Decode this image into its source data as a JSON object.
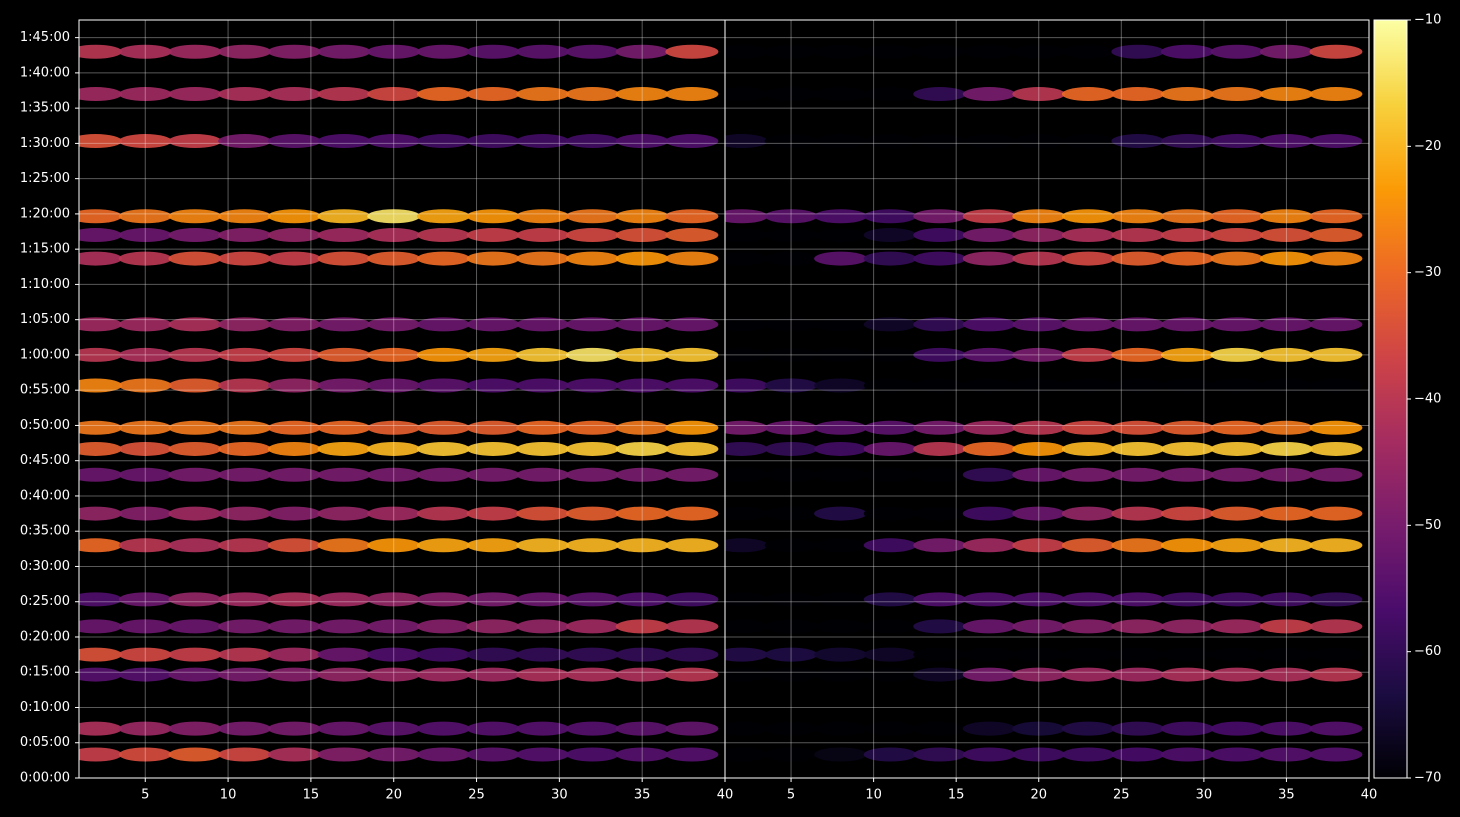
{
  "chart_data": {
    "type": "heatmap",
    "colormap": "inferno",
    "grid": true,
    "x": [
      2,
      5,
      8,
      11,
      14,
      17,
      20,
      23,
      26,
      29,
      32,
      35,
      38
    ],
    "y": [
      200,
      420,
      880,
      1050,
      1290,
      1520,
      1980,
      2250,
      2580,
      2800,
      2980,
      3340,
      3600,
      3860,
      4420,
      4620,
      4780,
      5420,
      5820,
      6180
    ],
    "xlim": [
      1,
      40
    ],
    "xticks": [
      5,
      10,
      15,
      20,
      25,
      30,
      35,
      40
    ],
    "ylim": [
      0,
      6450
    ],
    "yticks": [
      {
        "value": 0,
        "label": "0:00:00"
      },
      {
        "value": 300,
        "label": "0:05:00"
      },
      {
        "value": 600,
        "label": "0:10:00"
      },
      {
        "value": 900,
        "label": "0:15:00"
      },
      {
        "value": 1200,
        "label": "0:20:00"
      },
      {
        "value": 1500,
        "label": "0:25:00"
      },
      {
        "value": 1800,
        "label": "0:30:00"
      },
      {
        "value": 2100,
        "label": "0:35:00"
      },
      {
        "value": 2400,
        "label": "0:40:00"
      },
      {
        "value": 2700,
        "label": "0:45:00"
      },
      {
        "value": 3000,
        "label": "0:50:00"
      },
      {
        "value": 3300,
        "label": "0:55:00"
      },
      {
        "value": 3600,
        "label": "1:00:00"
      },
      {
        "value": 3900,
        "label": "1:05:00"
      },
      {
        "value": 4200,
        "label": "1:10:00"
      },
      {
        "value": 4500,
        "label": "1:15:00"
      },
      {
        "value": 4800,
        "label": "1:20:00"
      },
      {
        "value": 5100,
        "label": "1:25:00"
      },
      {
        "value": 5400,
        "label": "1:30:00"
      },
      {
        "value": 5700,
        "label": "1:35:00"
      },
      {
        "value": 6000,
        "label": "1:40:00"
      },
      {
        "value": 6300,
        "label": "1:45:00"
      }
    ],
    "clim": [
      -70,
      -10
    ],
    "cticks": [
      {
        "value": -10,
        "label": "−10"
      },
      {
        "value": -20,
        "label": "−20"
      },
      {
        "value": -30,
        "label": "−30"
      },
      {
        "value": -40,
        "label": "−40"
      },
      {
        "value": -50,
        "label": "−50"
      },
      {
        "value": -60,
        "label": "−60"
      },
      {
        "value": -70,
        "label": "−70"
      }
    ],
    "panels": [
      {
        "values": [
          [
            -38,
            -35,
            -32,
            -36,
            -42,
            -48,
            -50,
            -52,
            -54,
            -55,
            -56,
            -55,
            -55
          ],
          [
            -42,
            -45,
            -48,
            -50,
            -50,
            -52,
            -54,
            -55,
            -55,
            -55,
            -55,
            -54,
            -53
          ],
          [
            -55,
            -55,
            -52,
            -50,
            -48,
            -46,
            -45,
            -44,
            -44,
            -42,
            -42,
            -42,
            -40
          ],
          [
            -34,
            -36,
            -38,
            -40,
            -44,
            -52,
            -56,
            -58,
            -60,
            -60,
            -60,
            -60,
            -60
          ],
          [
            -52,
            -52,
            -52,
            -50,
            -50,
            -50,
            -50,
            -48,
            -46,
            -46,
            -44,
            -38,
            -40
          ],
          [
            -56,
            -52,
            -46,
            -44,
            -42,
            -44,
            -46,
            -48,
            -50,
            -52,
            -54,
            -56,
            -58
          ],
          [
            -30,
            -40,
            -42,
            -40,
            -34,
            -28,
            -24,
            -22,
            -22,
            -20,
            -20,
            -20,
            -20
          ],
          [
            -46,
            -48,
            -44,
            -46,
            -48,
            -46,
            -44,
            -40,
            -38,
            -34,
            -32,
            -30,
            -30
          ],
          [
            -52,
            -52,
            -50,
            -50,
            -50,
            -50,
            -50,
            -50,
            -50,
            -50,
            -50,
            -50,
            -50
          ],
          [
            -32,
            -34,
            -32,
            -30,
            -26,
            -22,
            -20,
            -18,
            -18,
            -18,
            -18,
            -16,
            -18
          ],
          [
            -28,
            -28,
            -28,
            -28,
            -30,
            -30,
            -32,
            -32,
            -32,
            -30,
            -30,
            -28,
            -24
          ],
          [
            -26,
            -28,
            -32,
            -40,
            -46,
            -50,
            -52,
            -54,
            -56,
            -56,
            -56,
            -56,
            -56
          ],
          [
            -40,
            -42,
            -40,
            -38,
            -36,
            -32,
            -30,
            -24,
            -22,
            -18,
            -14,
            -18,
            -18
          ],
          [
            -44,
            -44,
            -42,
            -46,
            -48,
            -50,
            -50,
            -52,
            -52,
            -52,
            -52,
            -52,
            -52
          ],
          [
            -42,
            -40,
            -34,
            -36,
            -38,
            -34,
            -32,
            -30,
            -28,
            -28,
            -26,
            -24,
            -26
          ],
          [
            -52,
            -52,
            -50,
            -48,
            -46,
            -44,
            -42,
            -40,
            -38,
            -38,
            -36,
            -34,
            -32
          ],
          [
            -30,
            -28,
            -26,
            -26,
            -24,
            -20,
            -14,
            -22,
            -24,
            -26,
            -28,
            -26,
            -30
          ],
          [
            -34,
            -36,
            -38,
            -50,
            -54,
            -56,
            -56,
            -58,
            -58,
            -58,
            -58,
            -56,
            -56
          ],
          [
            -44,
            -44,
            -44,
            -42,
            -42,
            -40,
            -36,
            -30,
            -30,
            -28,
            -28,
            -26,
            -26
          ],
          [
            -40,
            -42,
            -44,
            -46,
            -48,
            -50,
            -52,
            -52,
            -54,
            -54,
            -54,
            -50,
            -36
          ]
        ]
      },
      {
        "values": [
          [
            -70,
            -70,
            -68,
            -62,
            -60,
            -58,
            -58,
            -58,
            -57,
            -56,
            -56,
            -55,
            -55
          ],
          [
            -70,
            -70,
            -70,
            -70,
            -70,
            -66,
            -64,
            -62,
            -60,
            -58,
            -57,
            -56,
            -55
          ],
          [
            -70,
            -70,
            -70,
            -70,
            -66,
            -50,
            -46,
            -44,
            -44,
            -42,
            -42,
            -42,
            -40
          ],
          [
            -62,
            -63,
            -65,
            -66,
            -70,
            -70,
            -70,
            -70,
            -70,
            -70,
            -70,
            -70,
            -70
          ],
          [
            -70,
            -70,
            -70,
            -70,
            -62,
            -52,
            -50,
            -48,
            -46,
            -46,
            -44,
            -38,
            -40
          ],
          [
            -70,
            -70,
            -70,
            -62,
            -56,
            -56,
            -56,
            -56,
            -56,
            -58,
            -58,
            -58,
            -60
          ],
          [
            -66,
            -70,
            -70,
            -58,
            -50,
            -44,
            -38,
            -32,
            -28,
            -24,
            -22,
            -20,
            -20
          ],
          [
            -70,
            -70,
            -62,
            -70,
            -70,
            -58,
            -52,
            -46,
            -40,
            -36,
            -32,
            -30,
            -30
          ],
          [
            -70,
            -70,
            -70,
            -70,
            -70,
            -60,
            -52,
            -50,
            -50,
            -50,
            -50,
            -50,
            -50
          ],
          [
            -60,
            -60,
            -58,
            -52,
            -40,
            -30,
            -24,
            -20,
            -18,
            -18,
            -18,
            -16,
            -18
          ],
          [
            -50,
            -52,
            -54,
            -54,
            -50,
            -44,
            -40,
            -36,
            -34,
            -32,
            -30,
            -28,
            -24
          ],
          [
            -58,
            -62,
            -66,
            -70,
            -70,
            -70,
            -70,
            -70,
            -70,
            -70,
            -70,
            -70,
            -70
          ],
          [
            -70,
            -70,
            -70,
            -70,
            -58,
            -54,
            -50,
            -38,
            -30,
            -22,
            -16,
            -18,
            -18
          ],
          [
            -70,
            -70,
            -70,
            -66,
            -60,
            -56,
            -54,
            -52,
            -52,
            -52,
            -52,
            -52,
            -52
          ],
          [
            -70,
            -70,
            -54,
            -60,
            -58,
            -46,
            -40,
            -36,
            -32,
            -30,
            -28,
            -24,
            -26
          ],
          [
            -70,
            -70,
            -70,
            -66,
            -58,
            -50,
            -46,
            -42,
            -40,
            -38,
            -36,
            -34,
            -32
          ],
          [
            -52,
            -54,
            -56,
            -58,
            -50,
            -38,
            -26,
            -24,
            -26,
            -28,
            -30,
            -26,
            -30
          ],
          [
            -66,
            -70,
            -70,
            -70,
            -70,
            -70,
            -70,
            -70,
            -62,
            -60,
            -58,
            -56,
            -56
          ],
          [
            -70,
            -70,
            -70,
            -70,
            -60,
            -50,
            -40,
            -30,
            -30,
            -28,
            -28,
            -26,
            -26
          ],
          [
            -70,
            -70,
            -70,
            -70,
            -70,
            -70,
            -70,
            -70,
            -60,
            -56,
            -54,
            -50,
            -36
          ]
        ]
      }
    ]
  }
}
